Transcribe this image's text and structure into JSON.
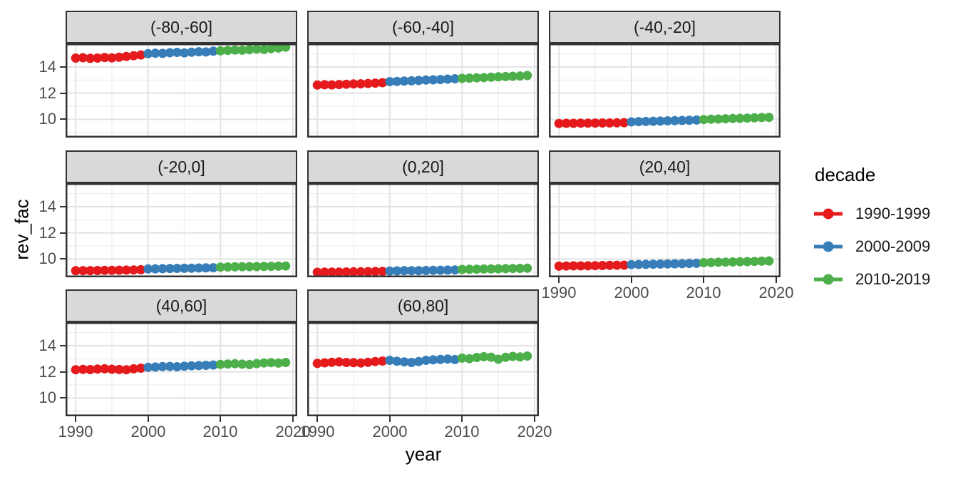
{
  "chart_data": {
    "type": "scatter",
    "title": "",
    "xlabel": "year",
    "ylabel": "rev_fac",
    "x_ticks": [
      1990,
      2000,
      2010,
      2020
    ],
    "y_ticks": [
      14,
      12,
      10
    ],
    "x_minor_gridlines": [
      1995,
      2005,
      2015
    ],
    "y_minor_gridlines": [
      9,
      11,
      13,
      15
    ],
    "xlim": [
      1988.6,
      2020.6
    ],
    "ylim": [
      8.6,
      15.8
    ],
    "grid": "major and minor, light gray on white panel",
    "facet_layout": "3 columns; rows of 3, 3, 2 panels; strip labels on top",
    "year_start": 1990,
    "year_end": 2019,
    "legend": {
      "title": "decade",
      "position": "right",
      "entries": [
        {
          "label": "1990-1999",
          "color": "#E41A1C"
        },
        {
          "label": "2000-2009",
          "color": "#377EB8"
        },
        {
          "label": "2010-2019",
          "color": "#4DAF4A"
        }
      ]
    },
    "decades": [
      {
        "name": "1990-1999",
        "color": "#E41A1C",
        "year_range": [
          1990,
          1999
        ]
      },
      {
        "name": "2000-2009",
        "color": "#377EB8",
        "year_range": [
          2000,
          2009
        ]
      },
      {
        "name": "2010-2019",
        "color": "#4DAF4A",
        "year_range": [
          2010,
          2019
        ]
      }
    ],
    "facets": [
      {
        "label": "(-80,-60]",
        "values": [
          14.68,
          14.71,
          14.66,
          14.68,
          14.73,
          14.7,
          14.75,
          14.81,
          14.86,
          14.92,
          15.02,
          15.06,
          15.04,
          15.09,
          15.12,
          15.08,
          15.13,
          15.17,
          15.15,
          15.21,
          15.24,
          15.27,
          15.3,
          15.29,
          15.33,
          15.37,
          15.34,
          15.41,
          15.45,
          15.52
        ]
      },
      {
        "label": "(-60,-40]",
        "values": [
          12.62,
          12.64,
          12.63,
          12.66,
          12.68,
          12.7,
          12.71,
          12.74,
          12.77,
          12.8,
          12.88,
          12.9,
          12.92,
          12.94,
          12.97,
          13.0,
          13.02,
          13.04,
          13.07,
          13.1,
          13.13,
          13.15,
          13.17,
          13.19,
          13.22,
          13.25,
          13.27,
          13.29,
          13.31,
          13.35
        ]
      },
      {
        "label": "(-40,-20]",
        "values": [
          9.68,
          9.69,
          9.69,
          9.7,
          9.7,
          9.71,
          9.72,
          9.72,
          9.73,
          9.74,
          9.8,
          9.82,
          9.83,
          9.85,
          9.86,
          9.88,
          9.89,
          9.91,
          9.92,
          9.94,
          9.98,
          10.0,
          10.02,
          10.04,
          10.06,
          10.07,
          10.09,
          10.11,
          10.13,
          10.15
        ]
      },
      {
        "label": "(-20,0]",
        "values": [
          9.1,
          9.11,
          9.11,
          9.12,
          9.13,
          9.13,
          9.14,
          9.15,
          9.16,
          9.18,
          9.24,
          9.25,
          9.26,
          9.27,
          9.28,
          9.29,
          9.3,
          9.31,
          9.32,
          9.33,
          9.38,
          9.39,
          9.4,
          9.41,
          9.42,
          9.42,
          9.43,
          9.44,
          9.45,
          9.46
        ]
      },
      {
        "label": "(0,20]",
        "values": [
          8.98,
          8.99,
          9.0,
          9.0,
          9.01,
          9.02,
          9.02,
          9.03,
          9.04,
          9.05,
          9.08,
          9.09,
          9.1,
          9.11,
          9.11,
          9.12,
          9.13,
          9.14,
          9.15,
          9.16,
          9.2,
          9.21,
          9.22,
          9.23,
          9.24,
          9.25,
          9.26,
          9.27,
          9.28,
          9.3
        ]
      },
      {
        "label": "(20,40]",
        "values": [
          9.45,
          9.46,
          9.47,
          9.47,
          9.48,
          9.49,
          9.5,
          9.51,
          9.52,
          9.53,
          9.57,
          9.58,
          9.59,
          9.6,
          9.61,
          9.62,
          9.63,
          9.64,
          9.66,
          9.67,
          9.72,
          9.73,
          9.75,
          9.76,
          9.77,
          9.79,
          9.8,
          9.81,
          9.83,
          9.85
        ]
      },
      {
        "label": "(40,60]",
        "values": [
          12.16,
          12.19,
          12.17,
          12.21,
          12.23,
          12.2,
          12.18,
          12.16,
          12.23,
          12.28,
          12.35,
          12.37,
          12.4,
          12.42,
          12.39,
          12.43,
          12.46,
          12.48,
          12.5,
          12.52,
          12.57,
          12.6,
          12.62,
          12.59,
          12.56,
          12.63,
          12.68,
          12.7,
          12.67,
          12.72
        ]
      },
      {
        "label": "(60,80]",
        "values": [
          12.65,
          12.69,
          12.73,
          12.76,
          12.72,
          12.7,
          12.68,
          12.73,
          12.79,
          12.83,
          12.88,
          12.81,
          12.76,
          12.72,
          12.79,
          12.88,
          12.92,
          12.95,
          12.98,
          12.94,
          13.05,
          13.01,
          13.1,
          13.16,
          13.12,
          12.97,
          13.11,
          13.18,
          13.14,
          13.21
        ]
      }
    ]
  },
  "style_colors": {
    "strip_background": "#D9D9D9",
    "panel_border": "#333333",
    "grid_major": "#E3E3E3",
    "grid_minor": "#F0F0F0",
    "tick_text": "#4D4D4D",
    "point_red": "#E41A1C",
    "point_blue": "#377EB8",
    "point_green": "#4DAF4A"
  }
}
